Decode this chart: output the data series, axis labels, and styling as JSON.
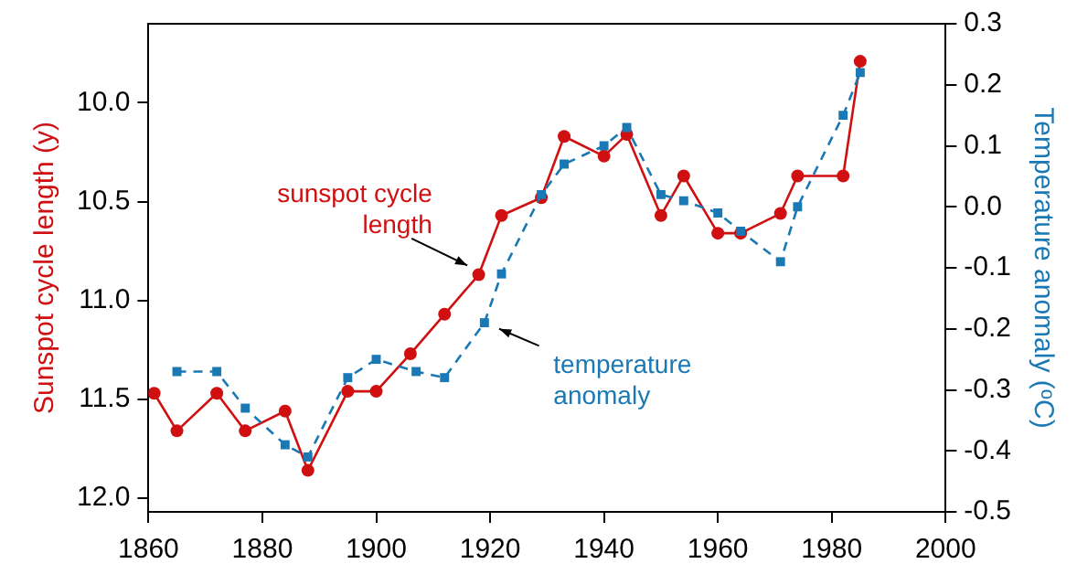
{
  "chart_data": {
    "type": "line",
    "ylabel": "Sunspot cycle length (y)",
    "y2label": "Temperature anomaly (ᵒC)",
    "xlim": [
      1860,
      2000
    ],
    "xticks": [
      1860,
      1880,
      1900,
      1920,
      1940,
      1960,
      1980,
      2000
    ],
    "ylim": [
      12.07,
      9.6
    ],
    "yticks": [
      {
        "value": 10,
        "label": "10.0"
      },
      {
        "value": 10.5,
        "label": "10.5"
      },
      {
        "value": 11,
        "label": "11.0"
      },
      {
        "value": 11.5,
        "label": "11.5"
      },
      {
        "value": 12,
        "label": "12.0"
      }
    ],
    "y2lim": [
      -0.5,
      0.3
    ],
    "y2ticks": [
      {
        "value": -0.5,
        "label": "-0.5"
      },
      {
        "value": -0.4,
        "label": "-0.4"
      },
      {
        "value": -0.3,
        "label": "-0.3"
      },
      {
        "value": -0.2,
        "label": "-0.2"
      },
      {
        "value": -0.1,
        "label": "-0.1"
      },
      {
        "value": 0,
        "label": "0.0"
      },
      {
        "value": 0.1,
        "label": "0.1"
      },
      {
        "value": 0.2,
        "label": "0.2"
      },
      {
        "value": 0.3,
        "label": "0.3"
      }
    ],
    "grid": false,
    "legend": false,
    "series": [
      {
        "axis": "y",
        "color": "#d01010",
        "marker": "circle",
        "line_style": "solid",
        "x": [
          1861,
          1865,
          1872,
          1877,
          1884,
          1888,
          1895,
          1900,
          1906,
          1912,
          1918,
          1922,
          1929,
          1933,
          1940,
          1944,
          1950,
          1954,
          1960,
          1964,
          1971,
          1974,
          1982,
          1985
        ],
        "values": [
          11.47,
          11.66,
          11.47,
          11.66,
          11.56,
          11.86,
          11.46,
          11.46,
          11.27,
          11.07,
          10.87,
          10.57,
          10.48,
          10.17,
          10.27,
          10.16,
          10.57,
          10.37,
          10.66,
          10.66,
          10.56,
          10.37,
          10.37,
          9.79
        ]
      },
      {
        "axis": "y2",
        "color": "#1a78b4",
        "marker": "square",
        "line_style": "dashed",
        "x": [
          1865,
          1872,
          1877,
          1884,
          1888,
          1895,
          1900,
          1907,
          1912,
          1919,
          1922,
          1929,
          1933,
          1940,
          1944,
          1950,
          1954,
          1960,
          1964,
          1971,
          1974,
          1982,
          1985
        ],
        "values": [
          -0.27,
          -0.27,
          -0.33,
          -0.39,
          -0.41,
          -0.28,
          -0.25,
          -0.27,
          -0.28,
          -0.19,
          -0.11,
          0.02,
          0.07,
          0.1,
          0.13,
          0.02,
          0.01,
          -0.01,
          -0.04,
          -0.09,
          0.0,
          0.15,
          0.22
        ]
      }
    ],
    "annotations": [
      "sunspot cycle length",
      "temperature anomaly"
    ]
  }
}
